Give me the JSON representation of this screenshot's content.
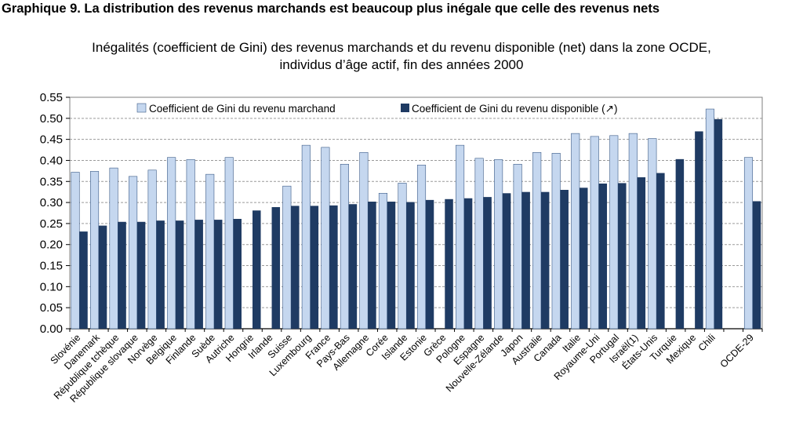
{
  "header": {
    "title": "Graphique 9. La distribution des revenus marchands est beaucoup plus inégale que celle des revenus nets",
    "subtitle_line1": "Inégalités (coefficient de Gini) des revenus marchands et du revenu disponible (net) dans la zone OCDE,",
    "subtitle_line2": "individus d’âge actif, fin des années 2000"
  },
  "chart_data": {
    "type": "bar",
    "ylim": [
      0,
      0.55
    ],
    "yticks": [
      "0.00",
      "0.05",
      "0.10",
      "0.15",
      "0.20",
      "0.25",
      "0.30",
      "0.35",
      "0.40",
      "0.45",
      "0.50",
      "0.55"
    ],
    "grid": true,
    "legend_position": "top",
    "categories": [
      "Slovénie",
      "Danemark",
      "République tchèque",
      "République slovaque",
      "Norvège",
      "Belgique",
      "Finlande",
      "Suède",
      "Autriche",
      "Hongrie",
      "Irlande",
      "Suisse",
      "Luxembourg",
      "France",
      "Pays-Bas",
      "Allemagne",
      "Corée",
      "Islande",
      "Estonie",
      "Grèce",
      "Pologne",
      "Espagne",
      "Nouvelle-Zélande",
      "Japon",
      "Australie",
      "Canada",
      "Italie",
      "Royaume-Uni",
      "Portugal",
      "Israël(1)",
      "États-Unis",
      "Turquie",
      "Mexique",
      "Chili",
      "",
      "OCDE-29"
    ],
    "series": [
      {
        "name": "Coefficient de Gini du revenu marchand",
        "color": "#c5d7ef",
        "values": [
          0.372,
          0.374,
          0.382,
          0.362,
          0.377,
          0.407,
          0.402,
          0.367,
          0.407,
          null,
          null,
          0.339,
          0.436,
          0.431,
          0.391,
          0.419,
          0.322,
          0.346,
          0.389,
          null,
          0.436,
          0.405,
          0.402,
          0.391,
          0.419,
          0.417,
          0.464,
          0.457,
          0.459,
          0.464,
          0.452,
          null,
          null,
          0.522,
          null,
          0.407
        ]
      },
      {
        "name": "Coefficient de Gini du revenu disponible (↗)",
        "color": "#1f3b63",
        "values": [
          0.231,
          0.245,
          0.254,
          0.254,
          0.257,
          0.257,
          0.259,
          0.259,
          0.261,
          0.281,
          0.289,
          0.292,
          0.292,
          0.293,
          0.296,
          0.302,
          0.302,
          0.301,
          0.306,
          0.308,
          0.31,
          0.313,
          0.322,
          0.325,
          0.325,
          0.33,
          0.335,
          0.345,
          0.346,
          0.36,
          0.37,
          0.403,
          0.469,
          0.498,
          null,
          0.303
        ]
      }
    ]
  }
}
